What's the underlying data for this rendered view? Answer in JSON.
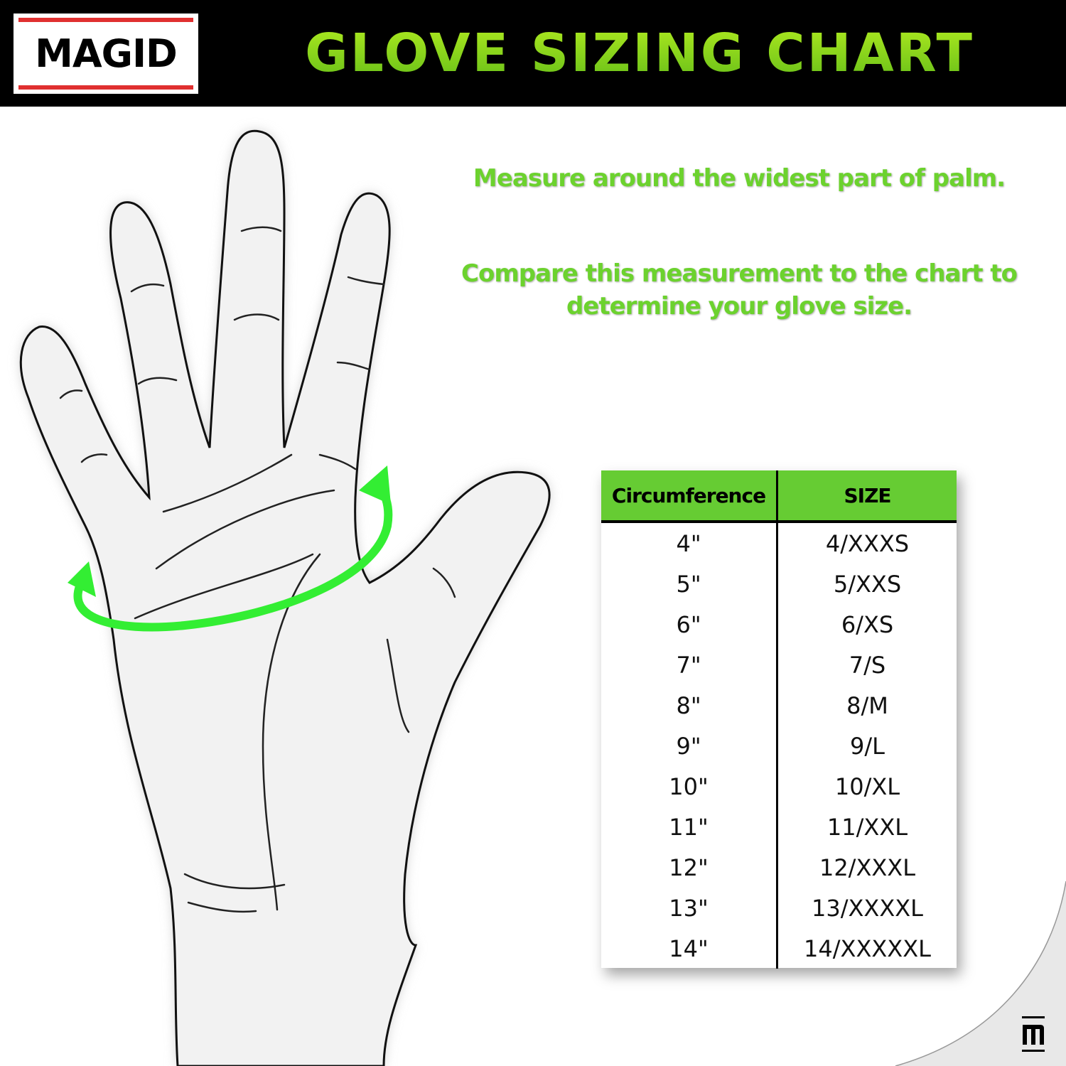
{
  "brand": {
    "logo_text": "MAGID",
    "logo_colors": {
      "bars": "#e03030",
      "text": "#000000"
    }
  },
  "header": {
    "title": "GLOVE SIZING CHART",
    "title_color": "#8ed21a"
  },
  "instructions": {
    "line1": "Measure around the widest part of palm.",
    "line2a": "Compare this measurement to the chart to",
    "line2b": "determine your glove size.",
    "color": "#6cd22e"
  },
  "illustration": {
    "subject": "hand-palm-outline",
    "arrow_color": "#33ee33"
  },
  "size_table": {
    "header_color": "#66cc33",
    "columns": [
      "Circumference",
      "SIZE"
    ],
    "rows": [
      [
        "4\"",
        "4/XXXS"
      ],
      [
        "5\"",
        "5/XXS"
      ],
      [
        "6\"",
        "6/XS"
      ],
      [
        "7\"",
        "7/S"
      ],
      [
        "8\"",
        "8/M"
      ],
      [
        "9\"",
        "9/L"
      ],
      [
        "10\"",
        "10/XL"
      ],
      [
        "11\"",
        "11/XXL"
      ],
      [
        "12\"",
        "12/XXXL"
      ],
      [
        "13\"",
        "13/XXXXL"
      ],
      [
        "14\"",
        "14/XXXXXL"
      ]
    ]
  },
  "footer": {
    "mark_icon": "magid-m-icon"
  }
}
